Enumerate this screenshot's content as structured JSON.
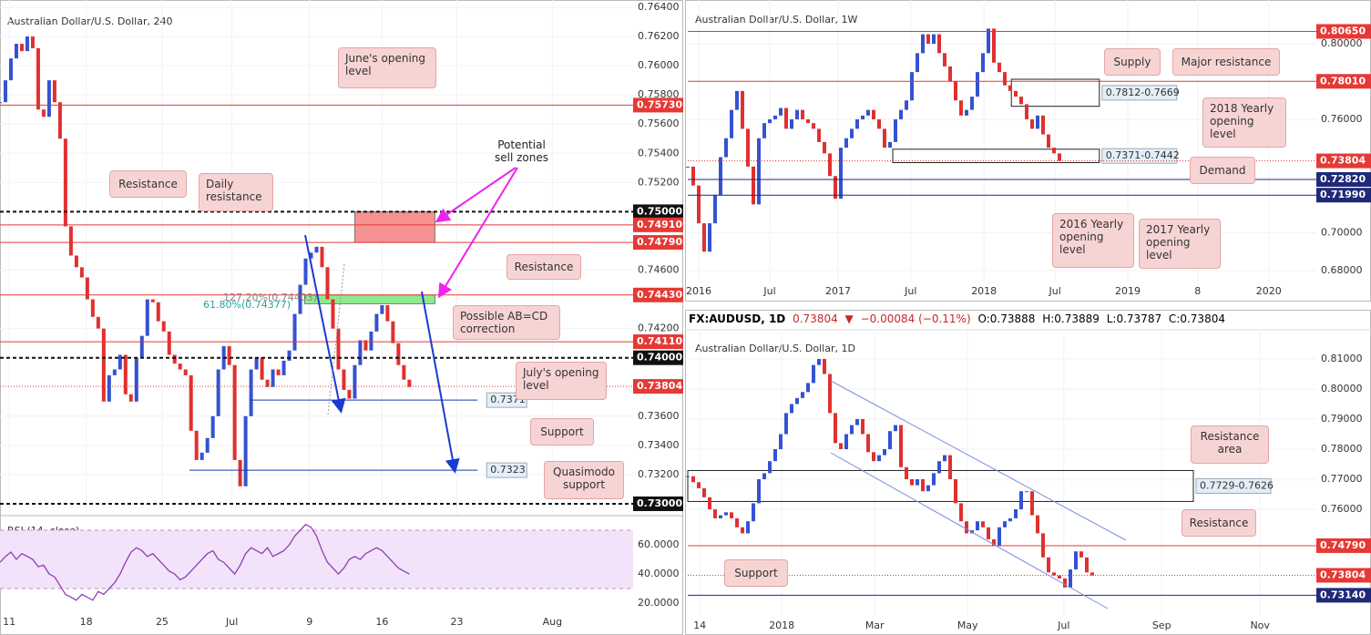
{
  "chart_data": [
    {
      "type": "candlestick",
      "title": "Australian Dollar/U.S. Dollar, 240",
      "up_color": "#3452d1",
      "down_color": "#e0302f",
      "grid": true,
      "values": [
        0.7575,
        0.759,
        0.7605,
        0.7615,
        0.761,
        0.762,
        0.7612,
        0.757,
        0.7565,
        0.759,
        0.7575,
        0.755,
        0.749,
        0.747,
        0.7462,
        0.7455,
        0.744,
        0.7428,
        0.742,
        0.737,
        0.7388,
        0.7392,
        0.7402,
        0.7375,
        0.737,
        0.74,
        0.7415,
        0.744,
        0.7438,
        0.7425,
        0.7418,
        0.7402,
        0.7396,
        0.7392,
        0.7388,
        0.735,
        0.733,
        0.7335,
        0.7345,
        0.736,
        0.7392,
        0.7408,
        0.7395,
        0.733,
        0.7312,
        0.736,
        0.7392,
        0.74,
        0.7385,
        0.738,
        0.7392,
        0.7388,
        0.7398,
        0.7405,
        0.743,
        0.745,
        0.7468,
        0.7472,
        0.7476,
        0.7462,
        0.744,
        0.742,
        0.7392,
        0.7378,
        0.7372,
        0.7395,
        0.7412,
        0.7405,
        0.7418,
        0.743,
        0.7436,
        0.7425,
        0.741,
        0.7395,
        0.7385,
        0.738
      ],
      "xlim": [
        0,
        116
      ],
      "xticks": [
        {
          "value": 1.7,
          "label": "11"
        },
        {
          "value": 15.8,
          "label": "18"
        },
        {
          "value": 29.7,
          "label": "25"
        },
        {
          "value": 42.5,
          "label": "Jul"
        },
        {
          "value": 56.7,
          "label": "9"
        },
        {
          "value": 70,
          "label": "16"
        },
        {
          "value": 83.7,
          "label": "23"
        },
        {
          "value": 101.2,
          "label": "Aug"
        }
      ],
      "ylim": [
        0.72925,
        0.7645
      ],
      "yticks": [
        {
          "value": 0.764,
          "label": "0.76400"
        },
        {
          "value": 0.762,
          "label": "0.76200"
        },
        {
          "value": 0.76,
          "label": "0.76000"
        },
        {
          "value": 0.758,
          "label": "0.75800"
        },
        {
          "value": 0.756,
          "label": "0.75600"
        },
        {
          "value": 0.754,
          "label": "0.75400"
        },
        {
          "value": 0.752,
          "label": "0.75200"
        },
        {
          "value": 0.746,
          "label": "0.74600"
        },
        {
          "value": 0.742,
          "label": "0.74200"
        },
        {
          "value": 0.736,
          "label": "0.73600"
        },
        {
          "value": 0.734,
          "label": "0.73400"
        },
        {
          "value": 0.732,
          "label": "0.73200"
        }
      ],
      "levels": [
        {
          "value": 0.7573,
          "label": "0.75730",
          "color": "#e53935",
          "style": "solid"
        },
        {
          "value": 0.75,
          "label": "0.75000",
          "color": "#111111",
          "style": "dashed"
        },
        {
          "value": 0.7491,
          "label": "0.74910",
          "color": "#e53935",
          "style": "solid"
        },
        {
          "value": 0.7479,
          "label": "0.74790",
          "color": "#e53935",
          "style": "solid"
        },
        {
          "value": 0.7443,
          "label": "0.74430",
          "color": "#e53935",
          "style": "solid"
        },
        {
          "value": 0.7411,
          "label": "0.74110",
          "color": "#e53935",
          "style": "solid"
        },
        {
          "value": 0.74,
          "label": "0.74000",
          "color": "#111111",
          "style": "dashed"
        },
        {
          "value": 0.73804,
          "label": "0.73804",
          "color": "#e53935",
          "style": "dotted"
        },
        {
          "value": 0.73,
          "label": "0.73000",
          "color": "#111111",
          "style": "dashed"
        }
      ],
      "lines": [
        {
          "value": 0.7371,
          "label": "0.7371",
          "from": 45.8,
          "to": 87.5,
          "color": "#1a3aa8"
        },
        {
          "value": 0.7323,
          "label": "0.7323",
          "from": 34.7,
          "to": 87.5,
          "color": "#1a3aa8"
        }
      ],
      "zones": [
        {
          "lo": 0.7479,
          "hi": 0.75,
          "from": 65,
          "to": 79.7,
          "color": "#f59191"
        },
        {
          "lo": 0.7437,
          "hi": 0.7443,
          "from": 55.8,
          "to": 79.7,
          "color": "#8fea8f"
        }
      ],
      "fib_labels": [
        "127.20%(0.74403)",
        "61.80%(0.74377)"
      ],
      "annotations": [
        "June's opening level",
        "Resistance",
        "Daily resistance",
        "Potential sell zones",
        "Resistance",
        "Possible AB=CD correction",
        "July's opening level",
        "Support",
        "Quasimodo support"
      ]
    },
    {
      "type": "line",
      "title": "RSI (14, close)",
      "color": "#8e3fb0",
      "values": [
        48,
        52,
        55,
        50,
        54,
        52,
        50,
        45,
        46,
        40,
        38,
        32,
        26,
        24,
        22,
        26,
        24,
        22,
        28,
        26,
        30,
        34,
        40,
        48,
        55,
        58,
        56,
        52,
        54,
        50,
        46,
        42,
        40,
        36,
        38,
        42,
        46,
        50,
        54,
        56,
        50,
        48,
        44,
        40,
        46,
        54,
        58,
        56,
        54,
        58,
        52,
        54,
        56,
        60,
        66,
        70,
        74,
        72,
        66,
        56,
        48,
        44,
        40,
        44,
        50,
        52,
        50,
        54,
        56,
        58,
        56,
        52,
        48,
        44,
        42,
        40
      ],
      "xlim": [
        0,
        116
      ],
      "ylim": [
        13.75,
        79.4
      ],
      "yticks": [
        {
          "value": 60,
          "label": "60.0000"
        },
        {
          "value": 40,
          "label": "40.0000"
        },
        {
          "value": 20,
          "label": "20.0000"
        }
      ],
      "band": [
        30,
        70
      ]
    },
    {
      "type": "candlestick",
      "title": "Australian Dollar/U.S. Dollar, 1W",
      "up_color": "#3452d1",
      "down_color": "#e0302f",
      "grid": true,
      "values": [
        0.735,
        0.725,
        0.705,
        0.69,
        0.705,
        0.72,
        0.74,
        0.75,
        0.765,
        0.775,
        0.755,
        0.735,
        0.715,
        0.75,
        0.758,
        0.76,
        0.762,
        0.766,
        0.755,
        0.76,
        0.765,
        0.76,
        0.758,
        0.755,
        0.748,
        0.742,
        0.73,
        0.718,
        0.745,
        0.75,
        0.755,
        0.76,
        0.762,
        0.765,
        0.76,
        0.755,
        0.745,
        0.748,
        0.76,
        0.765,
        0.77,
        0.785,
        0.795,
        0.805,
        0.8,
        0.805,
        0.795,
        0.788,
        0.78,
        0.77,
        0.762,
        0.765,
        0.772,
        0.785,
        0.795,
        0.808,
        0.79,
        0.785,
        0.778,
        0.775,
        0.772,
        0.768,
        0.76,
        0.755,
        0.762,
        0.752,
        0.745,
        0.742,
        0.738
      ],
      "xlim": [
        0,
        115
      ],
      "xticks": [
        {
          "value": 2,
          "label": "2016"
        },
        {
          "value": 15,
          "label": "Jul"
        },
        {
          "value": 27.5,
          "label": "2017"
        },
        {
          "value": 40.8,
          "label": "Jul"
        },
        {
          "value": 54.2,
          "label": "2018"
        },
        {
          "value": 67.2,
          "label": "Jul"
        },
        {
          "value": 80.5,
          "label": "2019"
        },
        {
          "value": 93.3,
          "label": "8"
        },
        {
          "value": 106.3,
          "label": "2020"
        }
      ],
      "ylim": [
        0.67373,
        0.82313
      ],
      "yticks": [
        {
          "value": 0.8,
          "label": "0.80000"
        },
        {
          "value": 0.76,
          "label": "0.76000"
        },
        {
          "value": 0.7,
          "label": "0.70000"
        },
        {
          "value": 0.68,
          "label": "0.68000"
        }
      ],
      "levels": [
        {
          "value": 0.8065,
          "label": "0.80650",
          "color": "#e53935",
          "style": "solid"
        },
        {
          "value": 0.7801,
          "label": "0.78010",
          "color": "#e53935",
          "style": "solid"
        },
        {
          "value": 0.73804,
          "label": "0.73804",
          "color": "#e53935",
          "style": "dotted"
        },
        {
          "value": 0.7282,
          "label": "0.72820",
          "color": "#1e2a78",
          "style": "solid"
        },
        {
          "value": 0.7199,
          "label": "0.71990",
          "color": "#1e2a78",
          "style": "solid"
        }
      ],
      "boxes": [
        {
          "lo": 0.7669,
          "hi": 0.7812,
          "label": "0.7812-0.7669",
          "from": 59.2,
          "to": 75.3
        },
        {
          "lo": 0.7371,
          "hi": 0.7442,
          "label": "0.7371-0.7442",
          "from": 37.5,
          "to": 75.3
        }
      ],
      "annotations": [
        "Supply",
        "Major resistance",
        "2018 Yearly opening level",
        "Demand",
        "2016 Yearly opening level",
        "2017 Yearly opening level"
      ]
    },
    {
      "type": "candlestick",
      "title": "Australian Dollar/U.S. Dollar, 1D",
      "up_color": "#3452d1",
      "down_color": "#e0302f",
      "grid": true,
      "header": {
        "symbol": "FX:AUDUSD, 1D",
        "price": "0.73804",
        "arrow": "▼",
        "change": "−0.00084 (−0.11%)",
        "open": "O:0.73888",
        "high": "H:0.73889",
        "low": "L:0.73787",
        "close": "C:0.73804"
      },
      "values": [
        0.771,
        0.769,
        0.767,
        0.764,
        0.76,
        0.757,
        0.758,
        0.759,
        0.757,
        0.754,
        0.752,
        0.756,
        0.762,
        0.77,
        0.772,
        0.776,
        0.78,
        0.785,
        0.792,
        0.795,
        0.797,
        0.799,
        0.802,
        0.808,
        0.81,
        0.805,
        0.792,
        0.782,
        0.78,
        0.785,
        0.788,
        0.79,
        0.785,
        0.779,
        0.776,
        0.778,
        0.78,
        0.786,
        0.788,
        0.774,
        0.77,
        0.768,
        0.77,
        0.766,
        0.768,
        0.772,
        0.776,
        0.778,
        0.77,
        0.762,
        0.756,
        0.752,
        0.753,
        0.756,
        0.754,
        0.75,
        0.748,
        0.754,
        0.756,
        0.757,
        0.76,
        0.766,
        0.766,
        0.758,
        0.752,
        0.744,
        0.739,
        0.738,
        0.737,
        0.734,
        0.74,
        0.746,
        0.744,
        0.739,
        0.738
      ],
      "xlim": [
        0,
        115
      ],
      "xticks": [
        {
          "value": 2.2,
          "label": "14"
        },
        {
          "value": 17.2,
          "label": "2018"
        },
        {
          "value": 34.2,
          "label": "Mar"
        },
        {
          "value": 51.2,
          "label": "May"
        },
        {
          "value": 68.8,
          "label": "Jul"
        },
        {
          "value": 86.7,
          "label": "Sep"
        },
        {
          "value": 104.7,
          "label": "Nov"
        }
      ],
      "ylim": [
        0.72455,
        0.81879
      ],
      "yticks": [
        {
          "value": 0.81,
          "label": "0.81000"
        },
        {
          "value": 0.8,
          "label": "0.80000"
        },
        {
          "value": 0.79,
          "label": "0.79000"
        },
        {
          "value": 0.78,
          "label": "0.78000"
        },
        {
          "value": 0.77,
          "label": "0.77000"
        },
        {
          "value": 0.76,
          "label": "0.76000"
        }
      ],
      "levels": [
        {
          "value": 0.7479,
          "label": "0.74790",
          "color": "#e53935",
          "style": "solid"
        },
        {
          "value": 0.73804,
          "label": "0.73804",
          "color": "#e53935",
          "style": "dotted"
        },
        {
          "value": 0.7314,
          "label": "0.73140",
          "color": "#1e2a78",
          "style": "solid"
        }
      ],
      "boxes": [
        {
          "lo": 0.7626,
          "hi": 0.7729,
          "label": "0.7729-0.7626",
          "from": 0,
          "to": 92.5
        }
      ],
      "annotations": [
        "Resistance area",
        "Resistance",
        "Support"
      ]
    }
  ]
}
